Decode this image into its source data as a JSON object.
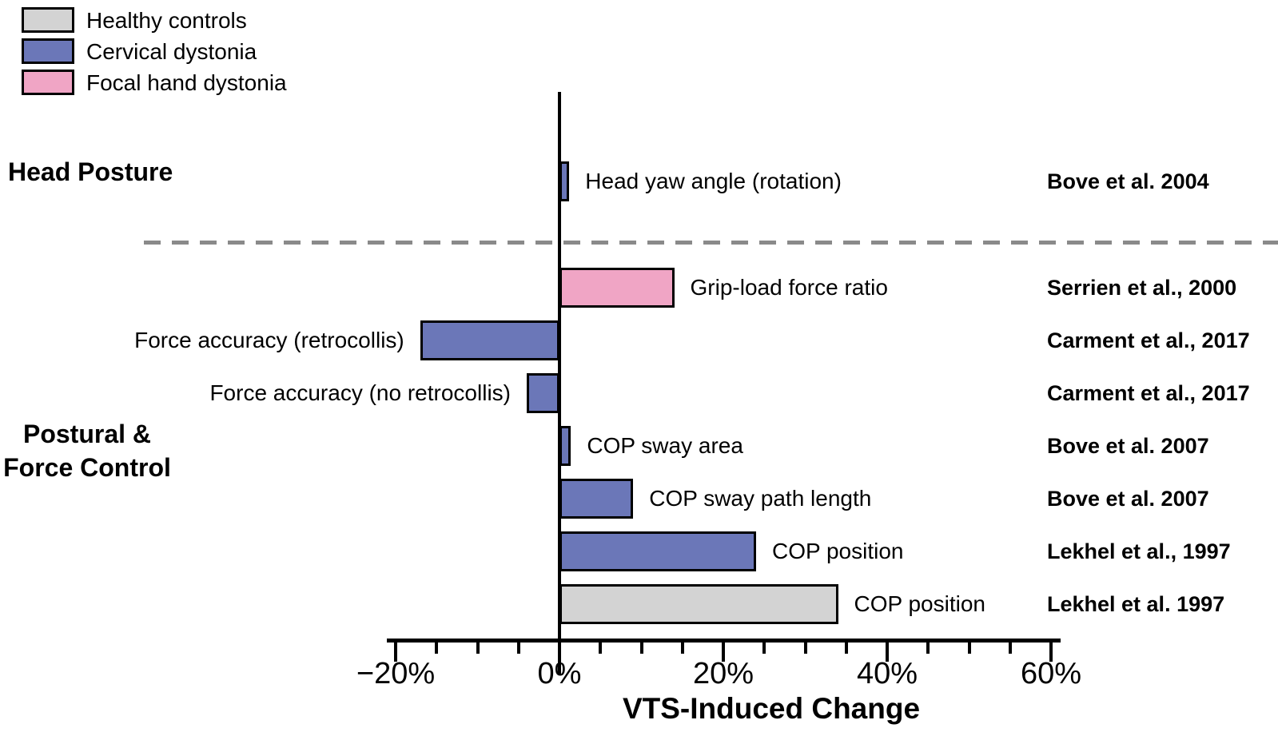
{
  "legend": {
    "items": [
      {
        "label": "Healthy controls",
        "color": "#D3D3D3"
      },
      {
        "label": "Cervical dystonia",
        "color": "#6B77B8"
      },
      {
        "label": "Focal hand dystonia",
        "color": "#F0A5C5"
      }
    ]
  },
  "sections": {
    "head_posture": "Head Posture",
    "postural_line1": "Postural &",
    "postural_line2": "Force Control"
  },
  "axis": {
    "xlabel": "VTS-Induced Change"
  },
  "chart_data": {
    "type": "bar",
    "orientation": "horizontal",
    "title": "",
    "xlabel": "VTS-Induced Change",
    "unit": "percent",
    "xlim": [
      -22,
      62
    ],
    "x_major_ticks": [
      -20,
      0,
      20,
      40,
      60
    ],
    "x_tick_labels": [
      "−20%",
      "0%",
      "20%",
      "40%",
      "60%"
    ],
    "x_minor_tick_step": 5,
    "grid": false,
    "legend_position": "top-left",
    "groups": [
      {
        "name": "Healthy controls",
        "color": "#D3D3D3"
      },
      {
        "name": "Cervical dystonia",
        "color": "#6B77B8"
      },
      {
        "name": "Focal hand dystonia",
        "color": "#F0A5C5"
      }
    ],
    "sections": [
      {
        "label": "Head Posture",
        "rows": [
          {
            "label": "Head yaw angle (rotation)",
            "value": 1.2,
            "group": "Cervical dystonia",
            "citation": "Bove et al. 2004"
          }
        ]
      },
      {
        "label": "Postural & Force Control",
        "rows": [
          {
            "label": "Grip-load force ratio",
            "value": 14,
            "group": "Focal hand dystonia",
            "citation": "Serrien et al., 2000"
          },
          {
            "label": "Force accuracy (retrocollis)",
            "value": -17,
            "group": "Cervical dystonia",
            "citation": "Carment et al., 2017"
          },
          {
            "label": "Force accuracy (no retrocollis)",
            "value": -4,
            "group": "Cervical dystonia",
            "citation": "Carment et al., 2017"
          },
          {
            "label": "COP sway area",
            "value": 1.4,
            "group": "Cervical dystonia",
            "citation": "Bove et al. 2007"
          },
          {
            "label": "COP sway path length",
            "value": 9,
            "group": "Cervical dystonia",
            "citation": "Bove et al. 2007"
          },
          {
            "label": "COP position",
            "value": 24,
            "group": "Cervical dystonia",
            "citation": "Lekhel et al., 1997"
          },
          {
            "label": "COP position",
            "value": 34,
            "group": "Healthy controls",
            "citation": "Lekhel et al. 1997"
          }
        ]
      }
    ]
  }
}
